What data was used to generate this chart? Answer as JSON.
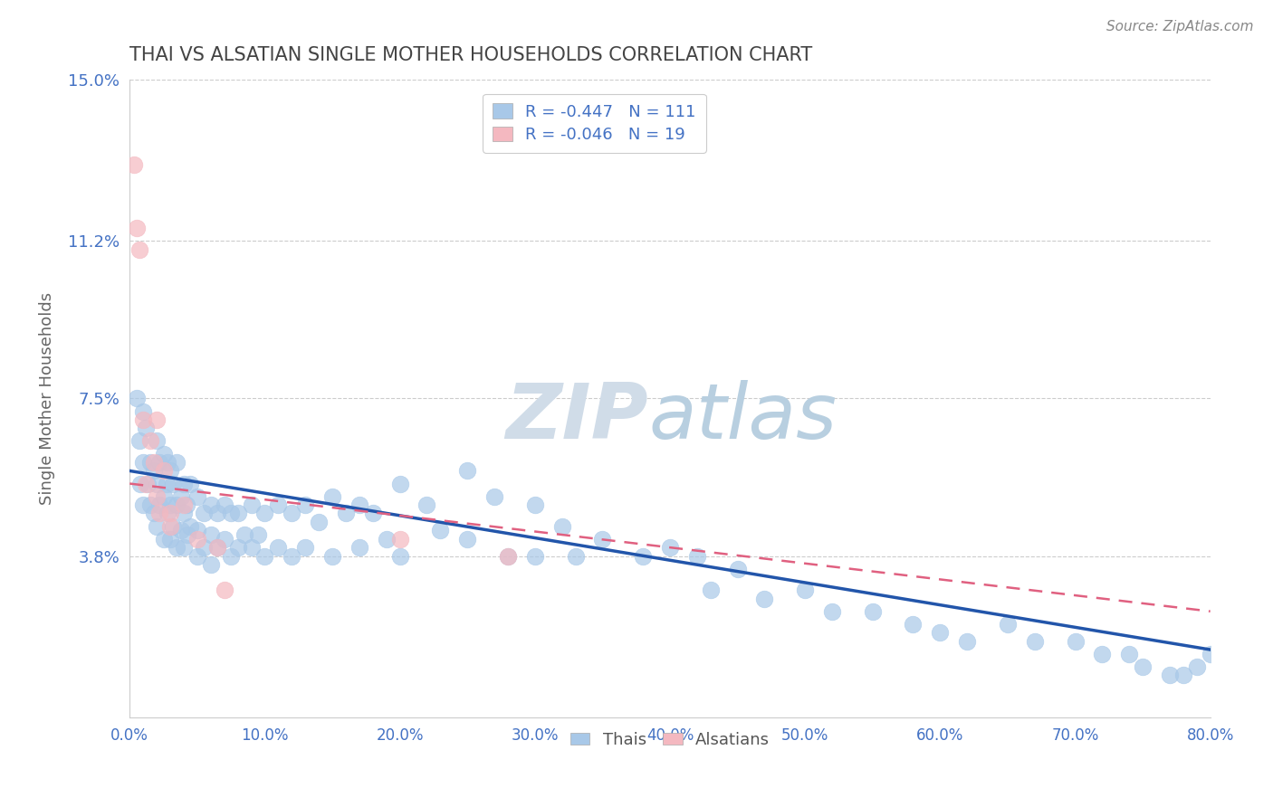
{
  "title": "THAI VS ALSATIAN SINGLE MOTHER HOUSEHOLDS CORRELATION CHART",
  "source": "Source: ZipAtlas.com",
  "ylabel": "Single Mother Households",
  "xlabel": "",
  "xmin": 0.0,
  "xmax": 0.8,
  "ymin": 0.0,
  "ymax": 0.15,
  "yticks": [
    0.038,
    0.075,
    0.112,
    0.15
  ],
  "ytick_labels": [
    "3.8%",
    "7.5%",
    "11.2%",
    "15.0%"
  ],
  "xticks": [
    0.0,
    0.1,
    0.2,
    0.3,
    0.4,
    0.5,
    0.6,
    0.7,
    0.8
  ],
  "xtick_labels": [
    "0.0%",
    "10.0%",
    "20.0%",
    "30.0%",
    "40.0%",
    "50.0%",
    "60.0%",
    "70.0%",
    "80.0%"
  ],
  "thai_color": "#a8c8e8",
  "alsatian_color": "#f4b8c0",
  "thai_line_color": "#2255aa",
  "alsatian_line_color": "#e06080",
  "legend_thai_R": -0.447,
  "legend_thai_N": 111,
  "legend_alsatian_R": -0.046,
  "legend_alsatian_N": 19,
  "watermark_zip": "ZIP",
  "watermark_atlas": "atlas",
  "background_color": "#ffffff",
  "title_color": "#444444",
  "axis_label_color": "#4472c4",
  "ylabel_color": "#666666",
  "marker_size": 180,
  "thai_scatter_x": [
    0.005,
    0.007,
    0.008,
    0.01,
    0.01,
    0.01,
    0.012,
    0.013,
    0.015,
    0.015,
    0.018,
    0.018,
    0.02,
    0.02,
    0.02,
    0.022,
    0.022,
    0.025,
    0.025,
    0.025,
    0.027,
    0.028,
    0.028,
    0.03,
    0.03,
    0.03,
    0.032,
    0.032,
    0.035,
    0.035,
    0.035,
    0.038,
    0.038,
    0.04,
    0.04,
    0.04,
    0.042,
    0.043,
    0.045,
    0.045,
    0.05,
    0.05,
    0.05,
    0.055,
    0.055,
    0.06,
    0.06,
    0.06,
    0.065,
    0.065,
    0.07,
    0.07,
    0.075,
    0.075,
    0.08,
    0.08,
    0.085,
    0.09,
    0.09,
    0.095,
    0.1,
    0.1,
    0.11,
    0.11,
    0.12,
    0.12,
    0.13,
    0.13,
    0.14,
    0.15,
    0.15,
    0.16,
    0.17,
    0.17,
    0.18,
    0.19,
    0.2,
    0.2,
    0.22,
    0.23,
    0.25,
    0.25,
    0.27,
    0.28,
    0.3,
    0.3,
    0.32,
    0.33,
    0.35,
    0.38,
    0.4,
    0.42,
    0.43,
    0.45,
    0.47,
    0.5,
    0.52,
    0.55,
    0.58,
    0.6,
    0.62,
    0.65,
    0.67,
    0.7,
    0.72,
    0.74,
    0.75,
    0.77,
    0.78,
    0.79,
    0.8
  ],
  "thai_scatter_y": [
    0.075,
    0.065,
    0.055,
    0.072,
    0.06,
    0.05,
    0.068,
    0.055,
    0.06,
    0.05,
    0.058,
    0.048,
    0.065,
    0.055,
    0.045,
    0.06,
    0.05,
    0.062,
    0.052,
    0.042,
    0.055,
    0.06,
    0.048,
    0.058,
    0.05,
    0.042,
    0.055,
    0.045,
    0.06,
    0.05,
    0.04,
    0.052,
    0.044,
    0.055,
    0.048,
    0.04,
    0.05,
    0.043,
    0.055,
    0.045,
    0.052,
    0.044,
    0.038,
    0.048,
    0.04,
    0.05,
    0.043,
    0.036,
    0.048,
    0.04,
    0.05,
    0.042,
    0.048,
    0.038,
    0.048,
    0.04,
    0.043,
    0.05,
    0.04,
    0.043,
    0.048,
    0.038,
    0.05,
    0.04,
    0.048,
    0.038,
    0.05,
    0.04,
    0.046,
    0.052,
    0.038,
    0.048,
    0.05,
    0.04,
    0.048,
    0.042,
    0.055,
    0.038,
    0.05,
    0.044,
    0.058,
    0.042,
    0.052,
    0.038,
    0.05,
    0.038,
    0.045,
    0.038,
    0.042,
    0.038,
    0.04,
    0.038,
    0.03,
    0.035,
    0.028,
    0.03,
    0.025,
    0.025,
    0.022,
    0.02,
    0.018,
    0.022,
    0.018,
    0.018,
    0.015,
    0.015,
    0.012,
    0.01,
    0.01,
    0.012,
    0.015
  ],
  "alsatian_scatter_x": [
    0.003,
    0.005,
    0.007,
    0.01,
    0.012,
    0.015,
    0.018,
    0.02,
    0.02,
    0.022,
    0.025,
    0.03,
    0.03,
    0.04,
    0.05,
    0.065,
    0.07,
    0.2,
    0.28
  ],
  "alsatian_scatter_y": [
    0.13,
    0.115,
    0.11,
    0.07,
    0.055,
    0.065,
    0.06,
    0.052,
    0.07,
    0.048,
    0.058,
    0.048,
    0.045,
    0.05,
    0.042,
    0.04,
    0.03,
    0.042,
    0.038
  ],
  "thai_line_x0": 0.0,
  "thai_line_x1": 0.8,
  "thai_line_y0": 0.058,
  "thai_line_y1": 0.016,
  "als_line_x0": 0.0,
  "als_line_x1": 0.8,
  "als_line_y0": 0.055,
  "als_line_y1": 0.025
}
